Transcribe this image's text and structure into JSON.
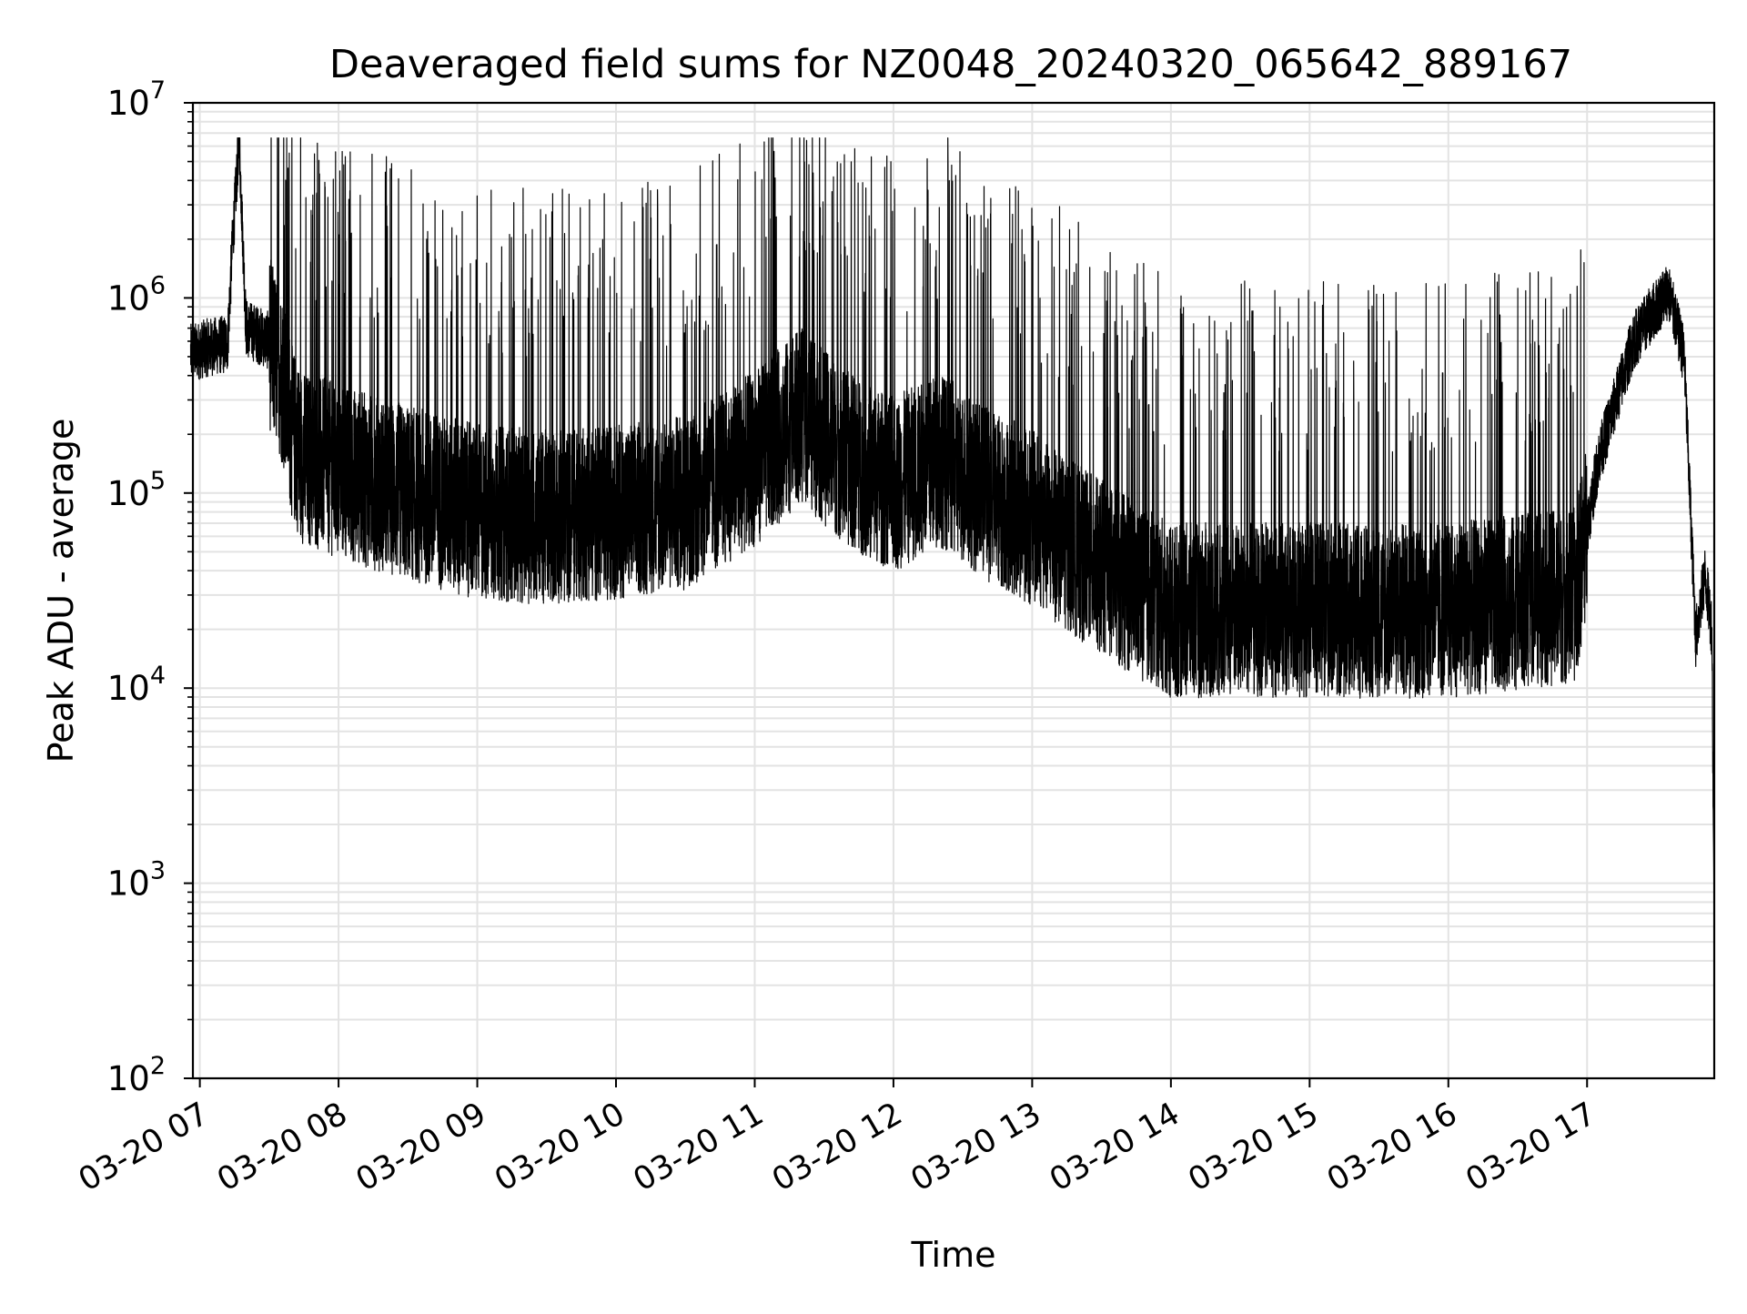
{
  "chart_data": {
    "type": "line",
    "title": "Deaveraged field sums for NZ0048_20240320_065642_889167",
    "xlabel": "Time",
    "ylabel": "Peak ADU - average",
    "yscale": "log",
    "ylim": [
      100,
      10000000
    ],
    "xlim": [
      "2024-03-20 06:57",
      "2024-03-20 17:55"
    ],
    "grid": true,
    "line_color": "#000000",
    "grid_color": "#e3e3e3",
    "x_ticks": [
      {
        "value": "2024-03-20 07:00",
        "label": "03-20 07"
      },
      {
        "value": "2024-03-20 08:00",
        "label": "03-20 08"
      },
      {
        "value": "2024-03-20 09:00",
        "label": "03-20 09"
      },
      {
        "value": "2024-03-20 10:00",
        "label": "03-20 10"
      },
      {
        "value": "2024-03-20 11:00",
        "label": "03-20 11"
      },
      {
        "value": "2024-03-20 12:00",
        "label": "03-20 12"
      },
      {
        "value": "2024-03-20 13:00",
        "label": "03-20 13"
      },
      {
        "value": "2024-03-20 14:00",
        "label": "03-20 14"
      },
      {
        "value": "2024-03-20 15:00",
        "label": "03-20 15"
      },
      {
        "value": "2024-03-20 16:00",
        "label": "03-20 16"
      },
      {
        "value": "2024-03-20 17:00",
        "label": "03-20 17"
      }
    ],
    "y_ticks": [
      {
        "value": 100,
        "base": "10",
        "exp": "2"
      },
      {
        "value": 1000,
        "base": "10",
        "exp": "3"
      },
      {
        "value": 10000,
        "base": "10",
        "exp": "4"
      },
      {
        "value": 100000,
        "base": "10",
        "exp": "5"
      },
      {
        "value": 1000000,
        "base": "10",
        "exp": "6"
      },
      {
        "value": 10000000,
        "base": "10",
        "exp": "7"
      }
    ],
    "series": [
      {
        "points": [
          [
            "2024-03-20 06:56",
            520000
          ],
          [
            "2024-03-20 07:04",
            560000
          ],
          [
            "2024-03-20 07:12",
            580000
          ],
          [
            "2024-03-20 07:14",
            1800000
          ],
          [
            "2024-03-20 07:17",
            6500000
          ],
          [
            "2024-03-20 07:20",
            700000
          ],
          [
            "2024-03-20 07:30",
            600000
          ],
          [
            "2024-03-20 07:37",
            350000
          ],
          [
            "2024-03-20 07:40",
            200000
          ],
          [
            "2024-03-20 07:45",
            150000
          ],
          [
            "2024-03-20 08:00",
            130000
          ],
          [
            "2024-03-20 08:30",
            100000
          ],
          [
            "2024-03-20 09:00",
            80000
          ],
          [
            "2024-03-20 09:30",
            75000
          ],
          [
            "2024-03-20 10:00",
            80000
          ],
          [
            "2024-03-20 10:30",
            90000
          ],
          [
            "2024-03-20 11:00",
            150000
          ],
          [
            "2024-03-20 11:20",
            250000
          ],
          [
            "2024-03-20 11:40",
            150000
          ],
          [
            "2024-03-20 12:00",
            110000
          ],
          [
            "2024-03-20 12:20",
            150000
          ],
          [
            "2024-03-20 12:40",
            100000
          ],
          [
            "2024-03-20 13:00",
            75000
          ],
          [
            "2024-03-20 13:20",
            50000
          ],
          [
            "2024-03-20 13:40",
            35000
          ],
          [
            "2024-03-20 14:00",
            25000
          ],
          [
            "2024-03-20 15:00",
            25000
          ],
          [
            "2024-03-20 16:00",
            25000
          ],
          [
            "2024-03-20 16:55",
            30000
          ],
          [
            "2024-03-20 17:05",
            150000
          ],
          [
            "2024-03-20 17:20",
            600000
          ],
          [
            "2024-03-20 17:35",
            1100000
          ],
          [
            "2024-03-20 17:42",
            500000
          ],
          [
            "2024-03-20 17:47",
            18000
          ],
          [
            "2024-03-20 17:51",
            38000
          ],
          [
            "2024-03-20 17:54",
            20000
          ],
          [
            "2024-03-20 17:55",
            500
          ]
        ]
      }
    ]
  }
}
